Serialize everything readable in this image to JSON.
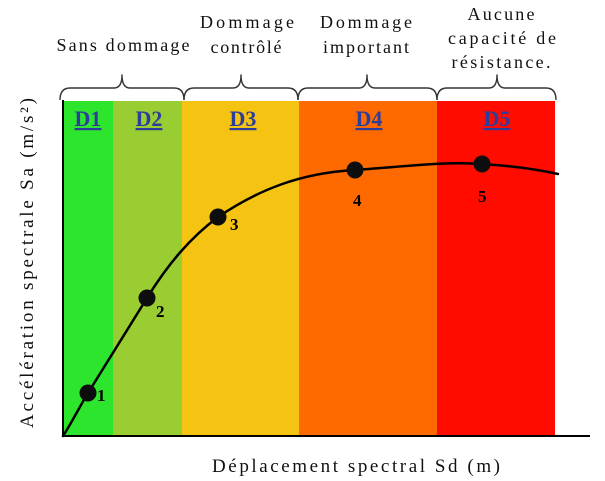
{
  "zone_captions": [
    {
      "lines": [
        "Sans dommage"
      ]
    },
    {
      "lines": [
        "Dommage",
        "contrôlé"
      ]
    },
    {
      "lines": [
        "Dommage",
        "important"
      ]
    },
    {
      "lines": [
        "Aucune",
        "capacité de",
        "résistance."
      ]
    }
  ],
  "zones": [
    {
      "label": "D1",
      "color": "#2ee52e"
    },
    {
      "label": "D2",
      "color": "#9acd32"
    },
    {
      "label": "D3",
      "color": "#f5c311"
    },
    {
      "label": "D4",
      "color": "#ff6a00"
    },
    {
      "label": "D5",
      "color": "#ff0b00"
    }
  ],
  "points": [
    {
      "label": "1"
    },
    {
      "label": "2"
    },
    {
      "label": "3"
    },
    {
      "label": "4"
    },
    {
      "label": "5"
    }
  ],
  "axes": {
    "x_label": "Déplacement spectral Sd (m)",
    "y_label": "Accélération spectrale Sa (m/s²)"
  },
  "colors": {
    "zone_label": "#2d3e9a"
  }
}
